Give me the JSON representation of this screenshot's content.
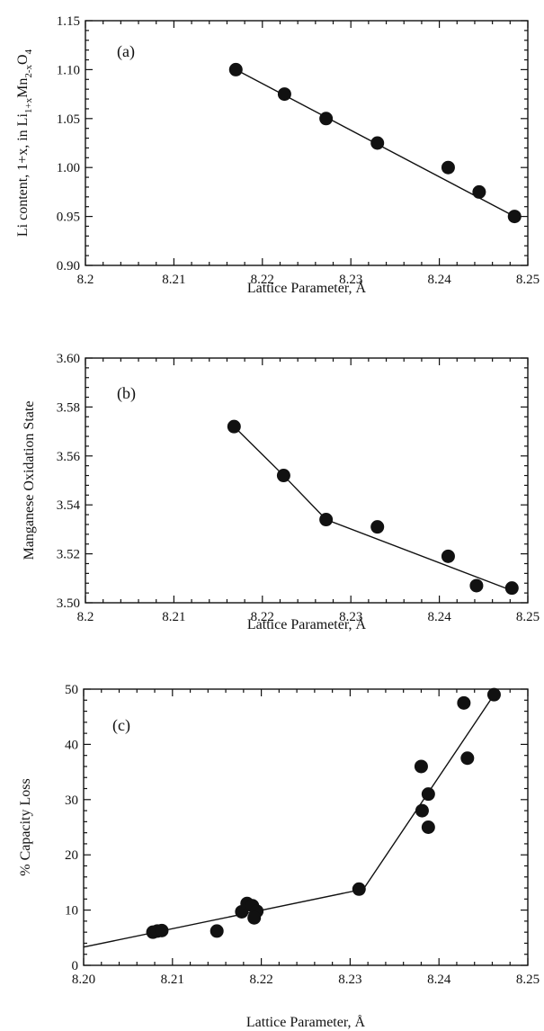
{
  "chart_data": [
    {
      "type": "scatter",
      "panel_label": "(a)",
      "xlabel": "Lattice Parameter, Å",
      "ylabel": {
        "main": "Li content, 1+x, in Li",
        "sub1": "1+x",
        "mid": "Mn",
        "sub2": "2-x",
        "end": "O",
        "sub3": "4"
      },
      "xlim": [
        8.2,
        8.25
      ],
      "ylim": [
        0.9,
        1.15
      ],
      "xticks": [
        "8.2",
        "8.21",
        "8.22",
        "8.23",
        "8.24",
        "8.25"
      ],
      "yticks": [
        "0.90",
        "0.95",
        "1.00",
        "1.05",
        "1.10",
        "1.15"
      ],
      "x": [
        8.217,
        8.2225,
        8.2272,
        8.233,
        8.241,
        8.2445,
        8.2485
      ],
      "y": [
        1.1,
        1.075,
        1.05,
        1.025,
        1.0,
        0.975,
        0.95
      ],
      "fit_line": {
        "x": [
          8.217,
          8.2485
        ],
        "y": [
          1.1,
          0.95
        ]
      }
    },
    {
      "type": "scatter",
      "panel_label": "(b)",
      "xlabel": "Lattice Parameter, Å",
      "ylabel": "Manganese Oxidation State",
      "xlim": [
        8.2,
        8.25
      ],
      "ylim": [
        3.5,
        3.6
      ],
      "xticks": [
        "8.2",
        "8.21",
        "8.22",
        "8.23",
        "8.24",
        "8.25"
      ],
      "yticks": [
        "3.50",
        "3.52",
        "3.54",
        "3.56",
        "3.58",
        "3.60"
      ],
      "x": [
        8.2168,
        8.2224,
        8.2272,
        8.233,
        8.241,
        8.2442,
        8.2482
      ],
      "y": [
        3.572,
        3.552,
        3.534,
        3.531,
        3.519,
        3.507,
        3.506
      ],
      "fit_line": {
        "x": [
          8.2168,
          8.2224,
          8.2272,
          8.2482
        ],
        "y": [
          3.572,
          3.552,
          3.534,
          3.505
        ]
      }
    },
    {
      "type": "scatter",
      "panel_label": "(c)",
      "xlabel": "Lattice Parameter, Å",
      "ylabel": "% Capacity Loss",
      "xlim": [
        8.2,
        8.25
      ],
      "ylim": [
        0,
        50
      ],
      "xticks": [
        "8.20",
        "8.21",
        "8.22",
        "8.23",
        "8.24",
        "8.25"
      ],
      "yticks": [
        "0",
        "10",
        "20",
        "30",
        "40",
        "50"
      ],
      "x": [
        8.2078,
        8.2083,
        8.2088,
        8.215,
        8.2178,
        8.2184,
        8.219,
        8.2195,
        8.2192,
        8.231,
        8.238,
        8.2381,
        8.2388,
        8.2388,
        8.2428,
        8.2432,
        8.2462
      ],
      "y": [
        6,
        6.2,
        6.3,
        6.2,
        9.7,
        11.2,
        10.8,
        9.8,
        8.6,
        13.8,
        36,
        28,
        31,
        25,
        47.5,
        37.5,
        49
      ],
      "fit_line": {
        "x": [
          8.2,
          8.2315,
          8.2462
        ],
        "y": [
          3.3,
          13.8,
          49
        ]
      }
    }
  ]
}
